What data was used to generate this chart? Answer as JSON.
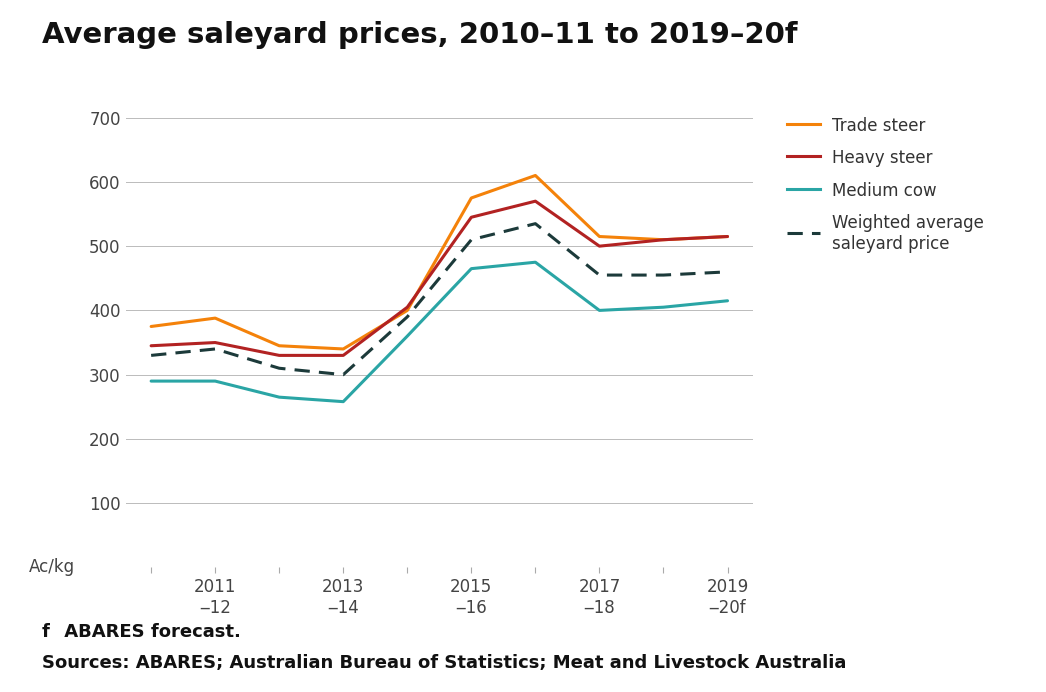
{
  "title": "Average saleyard prices, 2010–11 to 2019–20f",
  "x_positions": [
    0,
    1,
    2,
    3,
    4,
    5,
    6,
    7,
    8,
    9
  ],
  "trade_steer": [
    375,
    388,
    345,
    340,
    400,
    575,
    610,
    515,
    510,
    515
  ],
  "heavy_steer": [
    345,
    350,
    330,
    330,
    405,
    545,
    570,
    500,
    510,
    515
  ],
  "medium_cow": [
    290,
    290,
    265,
    258,
    360,
    465,
    475,
    400,
    405,
    415
  ],
  "weighted_avg": [
    330,
    340,
    310,
    300,
    390,
    510,
    535,
    455,
    455,
    460
  ],
  "trade_steer_color": "#F4820A",
  "heavy_steer_color": "#B22222",
  "medium_cow_color": "#2AA5A5",
  "weighted_avg_color": "#1C3A3A",
  "ylim": [
    0,
    700
  ],
  "yticks": [
    100,
    200,
    300,
    400,
    500,
    600,
    700
  ],
  "ylabel": "Ac/kg",
  "footnote_bold": "f",
  "footnote_rest": " ABARES forecast.",
  "source": "Sources: ABARES; Australian Bureau of Statistics; Meat and Livestock Australia",
  "background_color": "#ffffff",
  "grid_color": "#bbbbbb",
  "title_fontsize": 21,
  "legend_fontsize": 12,
  "tick_fontsize": 12,
  "footnote_fontsize": 13,
  "source_fontsize": 13
}
